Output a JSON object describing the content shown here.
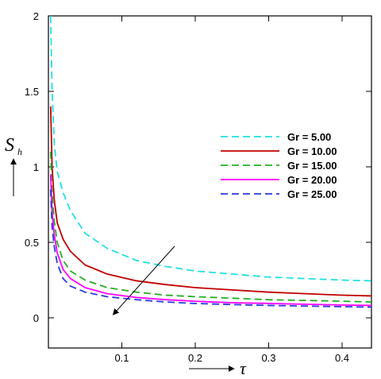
{
  "chart_data": {
    "type": "line",
    "title": "",
    "xlabel": "τ",
    "ylabel": "S",
    "ylabel_sub": "h",
    "xlim": [
      0.0,
      0.44
    ],
    "ylim": [
      -0.2,
      2.0
    ],
    "x_ticks": [
      0.1,
      0.2,
      0.3,
      0.4
    ],
    "x_tick_labels": [
      "0.1",
      "0.2",
      "0.3",
      "0.4"
    ],
    "y_ticks": [
      0,
      0.5,
      1,
      1.5,
      2
    ],
    "y_tick_labels": [
      "0",
      "0.5",
      "1",
      "1.5",
      "2"
    ],
    "grid": false,
    "legend_position": "right",
    "annotation_arrow": {
      "from": [
        0.172,
        0.475
      ],
      "to": [
        0.088,
        0.02
      ]
    },
    "series": [
      {
        "name": "Gr = 5.00",
        "color": "#22e0e0",
        "dash": "dashed",
        "x": [
          0.003,
          0.005,
          0.008,
          0.012,
          0.02,
          0.03,
          0.05,
          0.08,
          0.12,
          0.16,
          0.2,
          0.25,
          0.3,
          0.35,
          0.4,
          0.44
        ],
        "y": [
          2.0,
          1.5,
          1.15,
          0.97,
          0.83,
          0.71,
          0.56,
          0.46,
          0.38,
          0.34,
          0.31,
          0.29,
          0.27,
          0.26,
          0.25,
          0.245
        ]
      },
      {
        "name": "Gr = 10.00",
        "color": "#c00000",
        "dash": "solid",
        "x": [
          0.003,
          0.005,
          0.008,
          0.012,
          0.02,
          0.03,
          0.05,
          0.08,
          0.12,
          0.16,
          0.2,
          0.25,
          0.3,
          0.35,
          0.4,
          0.44
        ],
        "y": [
          1.4,
          1.0,
          0.78,
          0.63,
          0.52,
          0.44,
          0.35,
          0.29,
          0.245,
          0.22,
          0.2,
          0.185,
          0.17,
          0.16,
          0.15,
          0.145
        ]
      },
      {
        "name": "Gr = 15.00",
        "color": "#22b022",
        "dash": "dashed",
        "x": [
          0.003,
          0.005,
          0.008,
          0.012,
          0.02,
          0.03,
          0.05,
          0.08,
          0.12,
          0.16,
          0.2,
          0.25,
          0.3,
          0.35,
          0.4,
          0.44
        ],
        "y": [
          1.1,
          0.82,
          0.64,
          0.5,
          0.38,
          0.31,
          0.25,
          0.2,
          0.17,
          0.15,
          0.14,
          0.13,
          0.12,
          0.115,
          0.11,
          0.105
        ]
      },
      {
        "name": "Gr = 20.00",
        "color": "#ff00ff",
        "dash": "solid",
        "x": [
          0.003,
          0.005,
          0.008,
          0.012,
          0.02,
          0.03,
          0.05,
          0.08,
          0.12,
          0.16,
          0.2,
          0.25,
          0.3,
          0.35,
          0.4,
          0.44
        ],
        "y": [
          0.95,
          0.7,
          0.55,
          0.43,
          0.32,
          0.26,
          0.2,
          0.16,
          0.135,
          0.12,
          0.11,
          0.1,
          0.095,
          0.09,
          0.085,
          0.082
        ]
      },
      {
        "name": "Gr = 25.00",
        "color": "#2a3ae0",
        "dash": "dashed",
        "x": [
          0.003,
          0.005,
          0.008,
          0.012,
          0.02,
          0.03,
          0.05,
          0.08,
          0.12,
          0.16,
          0.2,
          0.25,
          0.3,
          0.35,
          0.4,
          0.44
        ],
        "y": [
          0.85,
          0.6,
          0.47,
          0.36,
          0.26,
          0.21,
          0.17,
          0.14,
          0.12,
          0.105,
          0.095,
          0.088,
          0.082,
          0.078,
          0.074,
          0.071
        ]
      }
    ]
  }
}
